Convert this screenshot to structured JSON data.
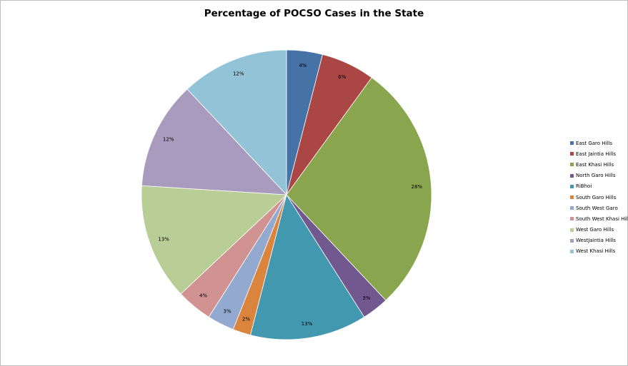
{
  "chart_data": {
    "type": "pie",
    "title": "Percentage of POCSO Cases in the State",
    "legend_position": "right",
    "slices": [
      {
        "name": "East Garo Hills",
        "value": 4,
        "label": "4%",
        "color": "#4572a7"
      },
      {
        "name": "East Jaintia Hills",
        "value": 6,
        "label": "6%",
        "color": "#aa4643"
      },
      {
        "name": "East Khasi Hills",
        "value": 28,
        "label": "28%",
        "color": "#89a54e"
      },
      {
        "name": "North Garo Hills",
        "value": 3,
        "label": "3%",
        "color": "#71588f"
      },
      {
        "name": "RiBhoi",
        "value": 13,
        "label": "13%",
        "color": "#4198af"
      },
      {
        "name": "South Garo Hills",
        "value": 2,
        "label": "2%",
        "color": "#db843d"
      },
      {
        "name": "South West  Garo",
        "value": 3,
        "label": "3%",
        "color": "#93a9cf"
      },
      {
        "name": "South  West Khasi Hills",
        "value": 4,
        "label": "4%",
        "color": "#d19392"
      },
      {
        "name": "West Garo Hills",
        "value": 13,
        "label": "13%",
        "color": "#b9cd96"
      },
      {
        "name": "WestJaintia Hills",
        "value": 12,
        "label": "12%",
        "color": "#a99bbd"
      },
      {
        "name": "West Khasi Hills",
        "value": 12,
        "label": "12%",
        "color": "#92c3d6"
      }
    ]
  }
}
